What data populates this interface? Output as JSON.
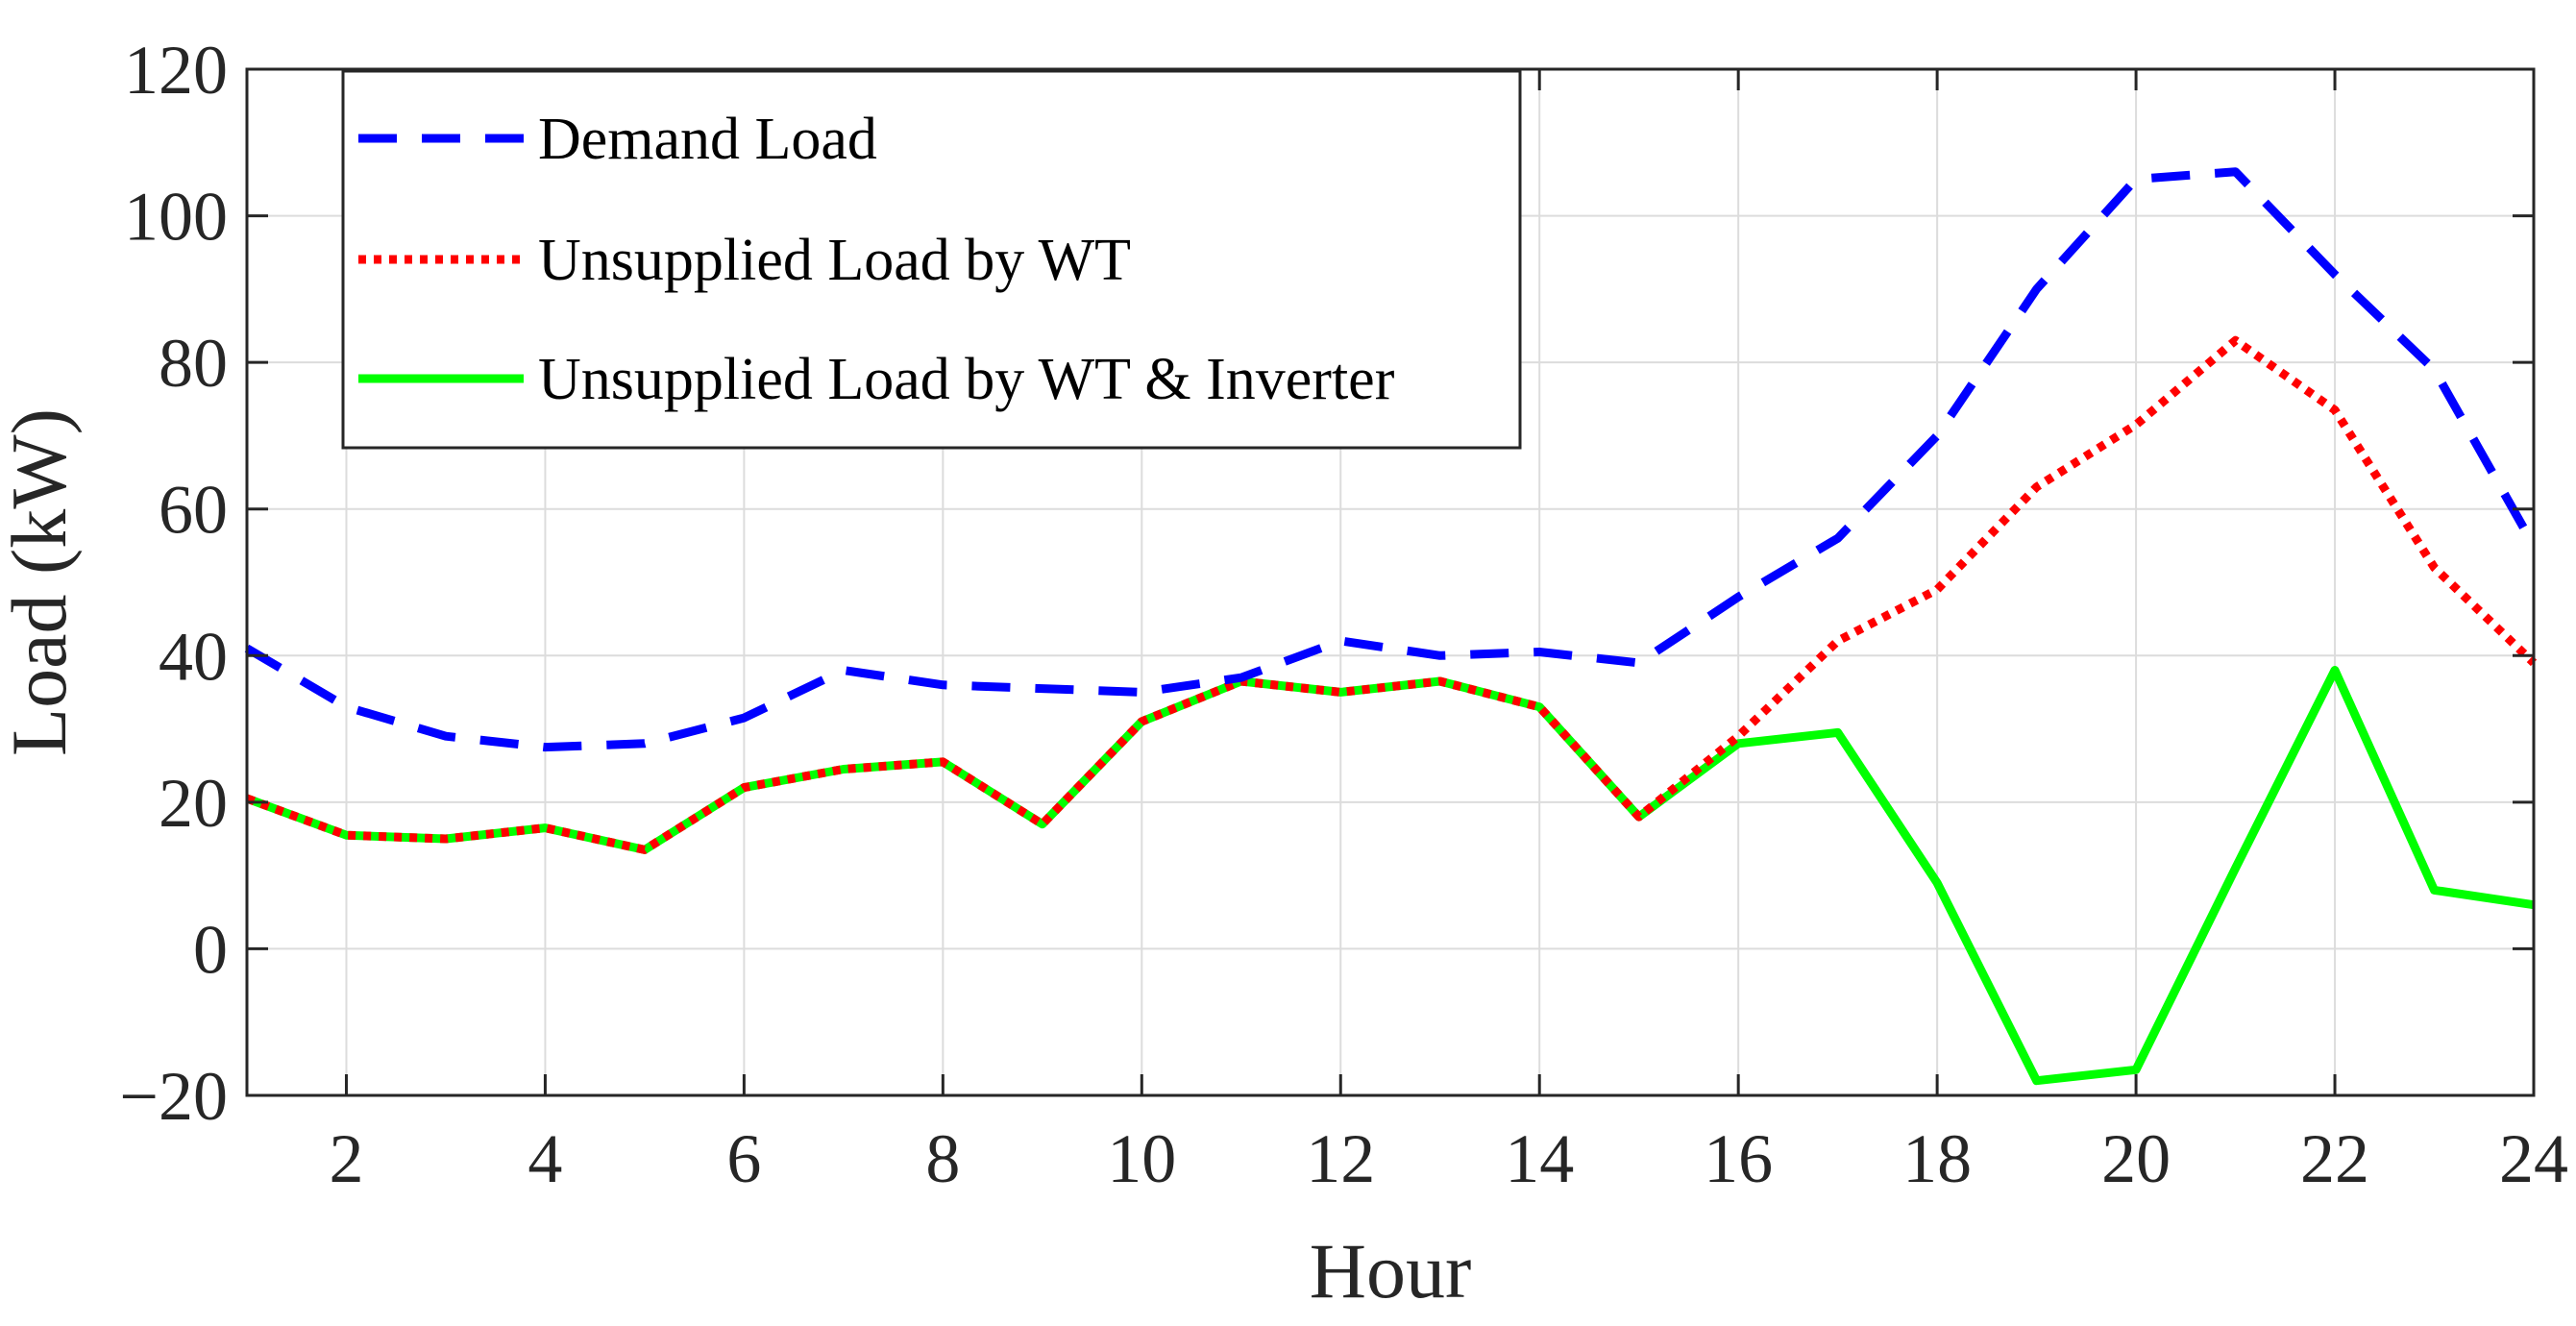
{
  "chart_data": {
    "type": "line",
    "title": "",
    "xlabel": "Hour",
    "ylabel": "Load (kW)",
    "xlim": [
      1,
      24
    ],
    "ylim": [
      -20,
      120
    ],
    "xticks": [
      2,
      4,
      6,
      8,
      10,
      12,
      14,
      16,
      18,
      20,
      22,
      24
    ],
    "yticks": [
      -20,
      0,
      20,
      40,
      60,
      80,
      100,
      120
    ],
    "ytick_labels": [
      "−20",
      "0",
      "20",
      "40",
      "60",
      "80",
      "100",
      "120"
    ],
    "grid": true,
    "legend_position": "top-left",
    "x": [
      1,
      2,
      3,
      4,
      5,
      6,
      7,
      8,
      9,
      10,
      11,
      12,
      13,
      14,
      15,
      16,
      17,
      18,
      19,
      20,
      21,
      22,
      23,
      24
    ],
    "series": [
      {
        "name": "Demand Load",
        "color": "#0000ff",
        "style": "dashed",
        "values": [
          41,
          33,
          29,
          27.5,
          28,
          31.5,
          38,
          36,
          35.5,
          35,
          37,
          42,
          40,
          40.5,
          39,
          48,
          56,
          70,
          90,
          105,
          106,
          92,
          79,
          55
        ]
      },
      {
        "name": "Unsupplied Load by WT",
        "color": "#ff0000",
        "style": "dotted",
        "values": [
          20.5,
          15.5,
          15,
          16.5,
          13.5,
          22,
          24.5,
          25.5,
          17,
          31,
          36.5,
          35,
          36.5,
          33,
          18,
          29,
          42,
          49,
          63,
          71.5,
          83,
          73.5,
          52,
          39
        ]
      },
      {
        "name": "Unsupplied Load by WT & Inverter",
        "color": "#00ff00",
        "style": "solid",
        "values": [
          20.5,
          15.5,
          15,
          16.5,
          13.5,
          22,
          24.5,
          25.5,
          17,
          31,
          36.5,
          35,
          36.5,
          33,
          18,
          28,
          29.5,
          9,
          -18,
          -16.5,
          11,
          38,
          8,
          6
        ]
      }
    ]
  }
}
